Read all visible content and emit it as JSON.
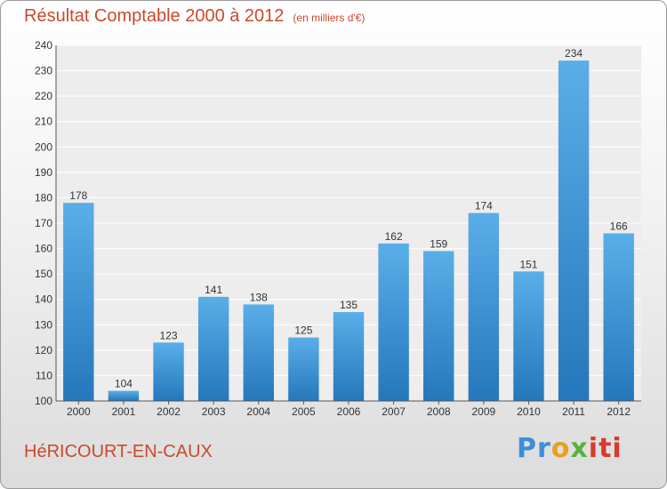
{
  "title": "Résultat Comptable 2000 à 2012",
  "unit": "(en milliers d'€)",
  "town": "HéRICOURT-EN-CAUX",
  "logo": {
    "parts": [
      "Pr",
      "o",
      "x",
      "iti"
    ]
  },
  "colors": {
    "bar_light": "#5aaee8",
    "bar_dark": "#2577bb",
    "title": "#c84a2e"
  },
  "chart_data": {
    "type": "bar",
    "title": "Résultat Comptable 2000 à 2012",
    "xlabel": "",
    "ylabel": "",
    "categories": [
      "2000",
      "2001",
      "2002",
      "2003",
      "2004",
      "2005",
      "2006",
      "2007",
      "2008",
      "2009",
      "2010",
      "2011",
      "2012"
    ],
    "values": [
      178,
      104,
      123,
      141,
      138,
      125,
      135,
      162,
      159,
      174,
      151,
      234,
      166
    ],
    "ylim": [
      100,
      240
    ],
    "yticks": [
      100,
      110,
      120,
      130,
      140,
      150,
      160,
      170,
      180,
      190,
      200,
      210,
      220,
      230,
      240
    ],
    "grid": true
  }
}
